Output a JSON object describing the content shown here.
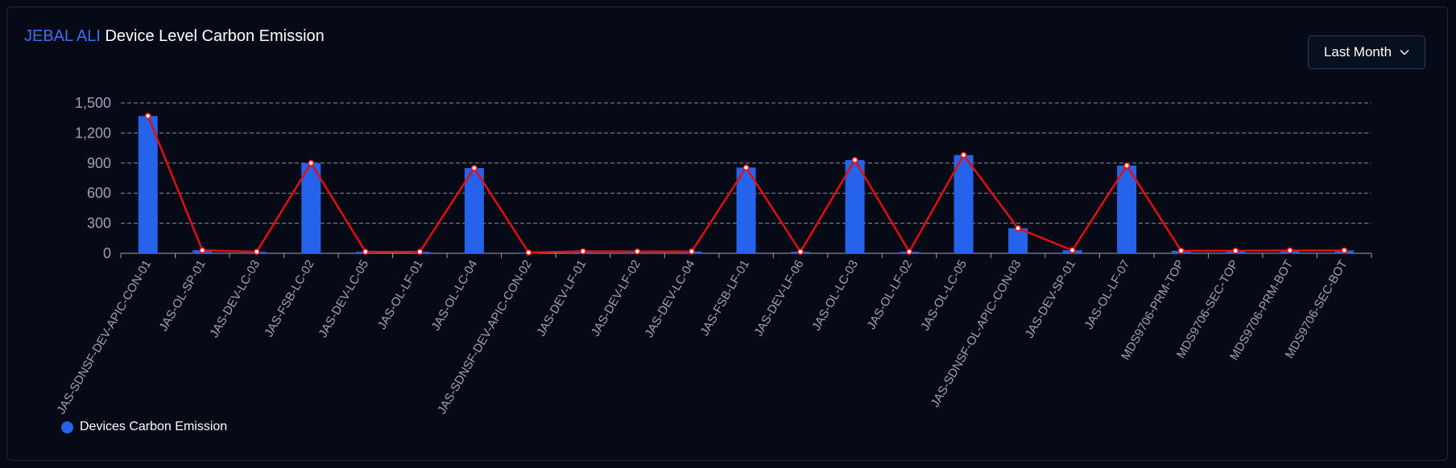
{
  "header": {
    "site": "JEBAL ALI",
    "title": "Device Level Carbon Emission"
  },
  "period_selector": {
    "selected": "Last Month"
  },
  "legend": {
    "label": "Devices Carbon Emission"
  },
  "colors": {
    "bar": "#2563eb",
    "line": "#e30e0e",
    "grid": "#9aa3b2",
    "axis_text": "#9aa3b2",
    "background": "#050914"
  },
  "icons": {
    "dropdown": "chevron-down-icon"
  },
  "chart_data": {
    "type": "bar",
    "overlay": "line",
    "categories": [
      "JAS-SDNSF-DEV-APIC-CON-01",
      "JAS-OL-SP-01",
      "JAS-DEV-LC-03",
      "JAS-FSB-LC-02",
      "JAS-DEV-LC-05",
      "JAS-OL-LF-01",
      "JAS-OL-LC-04",
      "JAS-SDNSF-DEV-APIC-CON-02",
      "JAS-DEV-LF-01",
      "JAS-DEV-LF-02",
      "JAS-DEV-LC-04",
      "JAS-FSB-LF-01",
      "JAS-DEV-LF-06",
      "JAS-OL-LC-03",
      "JAS-OL-LF-02",
      "JAS-OL-LC-05",
      "JAS-SDNSF-OL-APIC-CON-03",
      "JAS-DEV-SP-01",
      "JAS-OL-LF-07",
      "MDS9706-PRM-TOP",
      "MDS9706-SEC-TOP",
      "MDS9706-PRM-BOT",
      "MDS9706-SEC-BOT"
    ],
    "series": [
      {
        "name": "Devices Carbon Emission",
        "values": [
          1370,
          30,
          15,
          900,
          15,
          15,
          850,
          8,
          20,
          18,
          18,
          855,
          15,
          930,
          15,
          980,
          250,
          30,
          875,
          25,
          25,
          28,
          28
        ]
      }
    ],
    "yticks": [
      0,
      300,
      600,
      900,
      1200,
      1500
    ],
    "ytick_labels": [
      "0",
      "300",
      "600",
      "900",
      "1,200",
      "1,500"
    ],
    "ylim": [
      0,
      1500
    ],
    "grid": true,
    "legend_position": "bottom-left"
  }
}
